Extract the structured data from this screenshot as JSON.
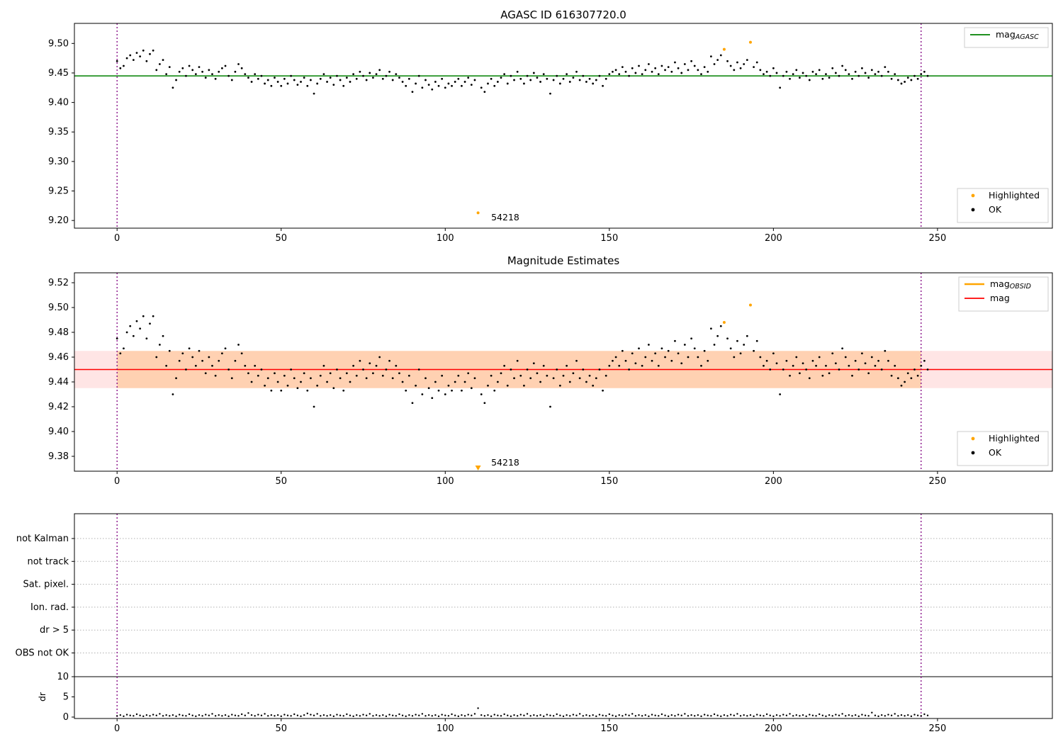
{
  "colors": {
    "ok": "#000000",
    "highlight": "#ffa500",
    "agasc_line": "#008000",
    "mag_line": "#ff0000",
    "obsid_line": "#ffa500",
    "vline": "#800080",
    "band_outer": "rgba(255,0,0,0.10)",
    "band_inner": "rgba(255,140,0,0.22)",
    "flag_grid": "#b0b0b0"
  },
  "chart_data": [
    {
      "type": "scatter",
      "title": "AGASC ID 616307720.0",
      "xlim": [
        -13,
        285
      ],
      "ylim": [
        9.187,
        9.534
      ],
      "xticks": [
        "0",
        "50",
        "100",
        "150",
        "200",
        "250"
      ],
      "yticks": [
        "9.20",
        "9.25",
        "9.30",
        "9.35",
        "9.40",
        "9.45",
        "9.50"
      ],
      "hline": {
        "y": 9.445,
        "color": "#008000"
      },
      "vlines": [
        0,
        245
      ],
      "legend_top": [
        {
          "type": "line",
          "color": "#008000",
          "lw": 1.8,
          "main": "mag",
          "sub": "AGASC"
        }
      ],
      "legend_bottom": [
        {
          "type": "dot",
          "color": "#ffa500",
          "main": "Highlighted"
        },
        {
          "type": "dot",
          "color": "#000000",
          "main": "OK"
        }
      ],
      "annotation": {
        "text": "54218",
        "x": 114,
        "y": 9.2
      },
      "x_start": 0,
      "x_step": 1,
      "highlighted": [
        110,
        185,
        193
      ],
      "y": [
        9.47,
        9.458,
        9.462,
        9.475,
        9.48,
        9.472,
        9.484,
        9.478,
        9.488,
        9.47,
        9.482,
        9.488,
        9.455,
        9.465,
        9.472,
        9.448,
        9.46,
        9.425,
        9.438,
        9.452,
        9.458,
        9.445,
        9.462,
        9.455,
        9.448,
        9.46,
        9.452,
        9.442,
        9.455,
        9.448,
        9.44,
        9.452,
        9.458,
        9.462,
        9.445,
        9.438,
        9.452,
        9.465,
        9.458,
        9.448,
        9.442,
        9.435,
        9.448,
        9.44,
        9.445,
        9.432,
        9.438,
        9.428,
        9.442,
        9.435,
        9.428,
        9.44,
        9.432,
        9.445,
        9.438,
        9.43,
        9.435,
        9.442,
        9.428,
        9.438,
        9.415,
        9.432,
        9.44,
        9.448,
        9.435,
        9.442,
        9.43,
        9.445,
        9.438,
        9.428,
        9.442,
        9.435,
        9.448,
        9.44,
        9.452,
        9.445,
        9.438,
        9.45,
        9.442,
        9.448,
        9.455,
        9.44,
        9.445,
        9.452,
        9.438,
        9.448,
        9.442,
        9.435,
        9.428,
        9.44,
        9.418,
        9.432,
        9.445,
        9.425,
        9.438,
        9.43,
        9.422,
        9.435,
        9.428,
        9.44,
        9.425,
        9.432,
        9.428,
        9.435,
        9.44,
        9.428,
        9.435,
        9.442,
        9.43,
        9.438,
        9.213,
        9.425,
        9.418,
        9.432,
        9.44,
        9.428,
        9.435,
        9.442,
        9.448,
        9.432,
        9.445,
        9.438,
        9.452,
        9.44,
        9.432,
        9.445,
        9.438,
        9.45,
        9.442,
        9.435,
        9.448,
        9.44,
        9.415,
        9.438,
        9.445,
        9.432,
        9.44,
        9.448,
        9.435,
        9.442,
        9.452,
        9.438,
        9.445,
        9.435,
        9.44,
        9.432,
        9.438,
        9.445,
        9.428,
        9.44,
        9.448,
        9.452,
        9.455,
        9.448,
        9.46,
        9.452,
        9.445,
        9.458,
        9.45,
        9.462,
        9.448,
        9.455,
        9.465,
        9.452,
        9.458,
        9.448,
        9.462,
        9.455,
        9.46,
        9.452,
        9.468,
        9.458,
        9.45,
        9.465,
        9.455,
        9.47,
        9.462,
        9.455,
        9.448,
        9.46,
        9.452,
        9.478,
        9.465,
        9.472,
        9.48,
        9.49,
        9.47,
        9.462,
        9.455,
        9.468,
        9.458,
        9.465,
        9.472,
        9.502,
        9.46,
        9.468,
        9.455,
        9.448,
        9.452,
        9.445,
        9.458,
        9.45,
        9.425,
        9.445,
        9.452,
        9.44,
        9.448,
        9.455,
        9.442,
        9.45,
        9.445,
        9.438,
        9.452,
        9.448,
        9.455,
        9.44,
        9.448,
        9.442,
        9.458,
        9.45,
        9.445,
        9.462,
        9.455,
        9.448,
        9.44,
        9.452,
        9.445,
        9.458,
        9.45,
        9.442,
        9.455,
        9.448,
        9.452,
        9.445,
        9.46,
        9.452,
        9.44,
        9.448,
        9.438,
        9.432,
        9.435,
        9.442,
        9.438,
        9.445,
        9.44,
        9.448,
        9.452,
        9.445
      ]
    },
    {
      "type": "scatter",
      "title": "Magnitude Estimates",
      "xlim": [
        -13,
        285
      ],
      "ylim": [
        9.368,
        9.528
      ],
      "xticks": [
        "0",
        "50",
        "100",
        "150",
        "200",
        "250"
      ],
      "yticks": [
        "9.38",
        "9.40",
        "9.42",
        "9.44",
        "9.46",
        "9.48",
        "9.50",
        "9.52"
      ],
      "hline": {
        "y": 9.45,
        "color": "#ff0000"
      },
      "band": {
        "ymin": 9.435,
        "ymax": 9.465,
        "inner_x": [
          0,
          245
        ]
      },
      "vlines": [
        0,
        245
      ],
      "legend_top": [
        {
          "type": "line",
          "color": "#ffa500",
          "lw": 2.5,
          "main": "mag",
          "sub": "OBSID"
        },
        {
          "type": "line",
          "color": "#ff0000",
          "lw": 1.8,
          "main": "mag",
          "sub": ""
        }
      ],
      "legend_bottom": [
        {
          "type": "dot",
          "color": "#ffa500",
          "main": "Highlighted"
        },
        {
          "type": "dot",
          "color": "#000000",
          "main": "OK"
        }
      ],
      "annotation": {
        "text": "54218",
        "x": 114
      },
      "x_start": 0,
      "x_step": 1,
      "highlighted": [
        110,
        185,
        193
      ],
      "y": [
        9.475,
        9.463,
        9.467,
        9.48,
        9.485,
        9.477,
        9.489,
        9.483,
        9.493,
        9.475,
        9.487,
        9.493,
        9.46,
        9.47,
        9.477,
        9.453,
        9.465,
        9.43,
        9.443,
        9.457,
        9.463,
        9.45,
        9.467,
        9.46,
        9.453,
        9.465,
        9.457,
        9.447,
        9.46,
        9.453,
        9.445,
        9.457,
        9.463,
        9.467,
        9.45,
        9.443,
        9.457,
        9.47,
        9.463,
        9.453,
        9.447,
        9.44,
        9.453,
        9.445,
        9.45,
        9.437,
        9.443,
        9.433,
        9.447,
        9.44,
        9.433,
        9.445,
        9.437,
        9.45,
        9.443,
        9.435,
        9.44,
        9.447,
        9.433,
        9.443,
        9.42,
        9.437,
        9.445,
        9.453,
        9.44,
        9.447,
        9.435,
        9.45,
        9.443,
        9.433,
        9.447,
        9.44,
        9.453,
        9.445,
        9.457,
        9.45,
        9.443,
        9.455,
        9.447,
        9.453,
        9.46,
        9.445,
        9.45,
        9.457,
        9.443,
        9.453,
        9.447,
        9.44,
        9.433,
        9.445,
        9.423,
        9.437,
        9.45,
        9.43,
        9.443,
        9.435,
        9.427,
        9.44,
        9.433,
        9.445,
        9.43,
        9.437,
        9.433,
        9.44,
        9.445,
        9.433,
        9.44,
        9.447,
        9.435,
        9.443,
        9.356,
        9.43,
        9.423,
        9.437,
        9.445,
        9.433,
        9.44,
        9.447,
        9.453,
        9.437,
        9.45,
        9.443,
        9.457,
        9.445,
        9.437,
        9.45,
        9.443,
        9.455,
        9.447,
        9.44,
        9.453,
        9.445,
        9.42,
        9.443,
        9.45,
        9.437,
        9.445,
        9.453,
        9.44,
        9.447,
        9.457,
        9.443,
        9.45,
        9.44,
        9.445,
        9.437,
        9.443,
        9.45,
        9.433,
        9.445,
        9.453,
        9.457,
        9.46,
        9.453,
        9.465,
        9.457,
        9.45,
        9.463,
        9.455,
        9.467,
        9.453,
        9.46,
        9.47,
        9.457,
        9.463,
        9.453,
        9.467,
        9.46,
        9.465,
        9.457,
        9.473,
        9.463,
        9.455,
        9.47,
        9.46,
        9.475,
        9.467,
        9.46,
        9.453,
        9.465,
        9.457,
        9.483,
        9.47,
        9.477,
        9.485,
        9.488,
        9.475,
        9.467,
        9.46,
        9.473,
        9.463,
        9.47,
        9.477,
        9.502,
        9.465,
        9.473,
        9.46,
        9.453,
        9.457,
        9.45,
        9.463,
        9.455,
        9.43,
        9.45,
        9.457,
        9.445,
        9.453,
        9.46,
        9.447,
        9.455,
        9.45,
        9.443,
        9.457,
        9.453,
        9.46,
        9.445,
        9.453,
        9.447,
        9.463,
        9.455,
        9.45,
        9.467,
        9.46,
        9.453,
        9.445,
        9.457,
        9.45,
        9.463,
        9.455,
        9.447,
        9.46,
        9.453,
        9.457,
        9.45,
        9.465,
        9.457,
        9.445,
        9.453,
        9.443,
        9.437,
        9.44,
        9.447,
        9.443,
        9.45,
        9.445,
        9.453,
        9.457,
        9.45
      ]
    },
    {
      "type": "flags",
      "xlim": [
        -13,
        285
      ],
      "xticks": [
        "0",
        "50",
        "100",
        "150",
        "200",
        "250"
      ],
      "flag_labels": [
        "not Kalman",
        "not track",
        "Sat. pixel.",
        "Ion. rad.",
        "dr > 5",
        "OBS not OK"
      ],
      "dr_ticks": [
        "0",
        "5",
        "10"
      ],
      "dr_limit_line": 10,
      "ylabel": "dr",
      "vlines": [
        0,
        245
      ],
      "x_start": 0,
      "x_step": 1,
      "dr": [
        0.3,
        0.5,
        0.2,
        0.6,
        0.4,
        0.3,
        0.7,
        0.4,
        0.2,
        0.5,
        0.3,
        0.6,
        0.4,
        0.8,
        0.3,
        0.5,
        0.3,
        0.5,
        0.2,
        0.6,
        0.4,
        0.3,
        0.7,
        0.4,
        0.2,
        0.5,
        0.3,
        0.6,
        0.4,
        0.8,
        0.3,
        0.5,
        0.3,
        0.5,
        0.2,
        0.6,
        0.4,
        0.3,
        0.7,
        0.4,
        1.0,
        0.5,
        0.3,
        0.6,
        0.4,
        0.8,
        0.3,
        0.5,
        0.3,
        0.5,
        0.2,
        0.6,
        0.4,
        0.3,
        0.7,
        0.4,
        0.2,
        0.5,
        0.9,
        0.6,
        0.4,
        0.8,
        0.3,
        0.5,
        0.3,
        0.5,
        0.2,
        0.6,
        0.4,
        0.3,
        0.7,
        0.4,
        0.2,
        0.5,
        0.3,
        0.6,
        0.4,
        0.8,
        0.3,
        0.5,
        0.3,
        0.5,
        0.2,
        0.6,
        0.4,
        0.3,
        0.7,
        0.4,
        0.2,
        0.5,
        0.3,
        0.6,
        0.4,
        0.8,
        0.3,
        0.5,
        0.3,
        0.5,
        0.2,
        0.6,
        0.4,
        0.3,
        0.7,
        0.4,
        0.2,
        0.5,
        0.3,
        0.6,
        0.4,
        0.8,
        2.2,
        0.5,
        0.3,
        0.5,
        0.2,
        0.6,
        0.4,
        0.3,
        0.7,
        0.4,
        0.2,
        0.5,
        0.3,
        0.6,
        0.4,
        0.8,
        0.3,
        0.5,
        0.3,
        0.5,
        0.2,
        0.6,
        0.4,
        0.3,
        0.7,
        0.4,
        0.2,
        0.5,
        0.3,
        0.6,
        0.4,
        0.8,
        0.3,
        0.5,
        0.3,
        0.5,
        0.2,
        0.6,
        0.4,
        0.3,
        0.7,
        0.4,
        0.2,
        0.5,
        0.3,
        0.6,
        0.4,
        0.8,
        0.3,
        0.5,
        0.3,
        0.5,
        0.2,
        0.6,
        0.4,
        0.3,
        0.7,
        0.4,
        0.2,
        0.5,
        0.3,
        0.6,
        0.4,
        0.8,
        0.3,
        0.5,
        0.3,
        0.5,
        0.2,
        0.6,
        0.4,
        0.3,
        0.7,
        0.4,
        0.2,
        0.5,
        0.3,
        0.6,
        0.4,
        0.8,
        0.3,
        0.5,
        0.3,
        0.5,
        0.2,
        0.6,
        0.4,
        0.3,
        0.7,
        0.4,
        0.2,
        0.5,
        0.3,
        0.6,
        0.4,
        0.8,
        0.3,
        0.5,
        0.3,
        0.5,
        0.2,
        0.6,
        0.4,
        0.3,
        0.7,
        0.4,
        0.2,
        0.5,
        0.3,
        0.6,
        0.4,
        0.8,
        0.3,
        0.5,
        0.3,
        0.5,
        0.2,
        0.6,
        0.4,
        0.3,
        1.1,
        0.4,
        0.2,
        0.5,
        0.3,
        0.6,
        0.4,
        0.8,
        0.3,
        0.5,
        0.3,
        0.5,
        0.2,
        0.6,
        0.4,
        0.3,
        0.7,
        0.4
      ],
      "flag_points": []
    }
  ]
}
